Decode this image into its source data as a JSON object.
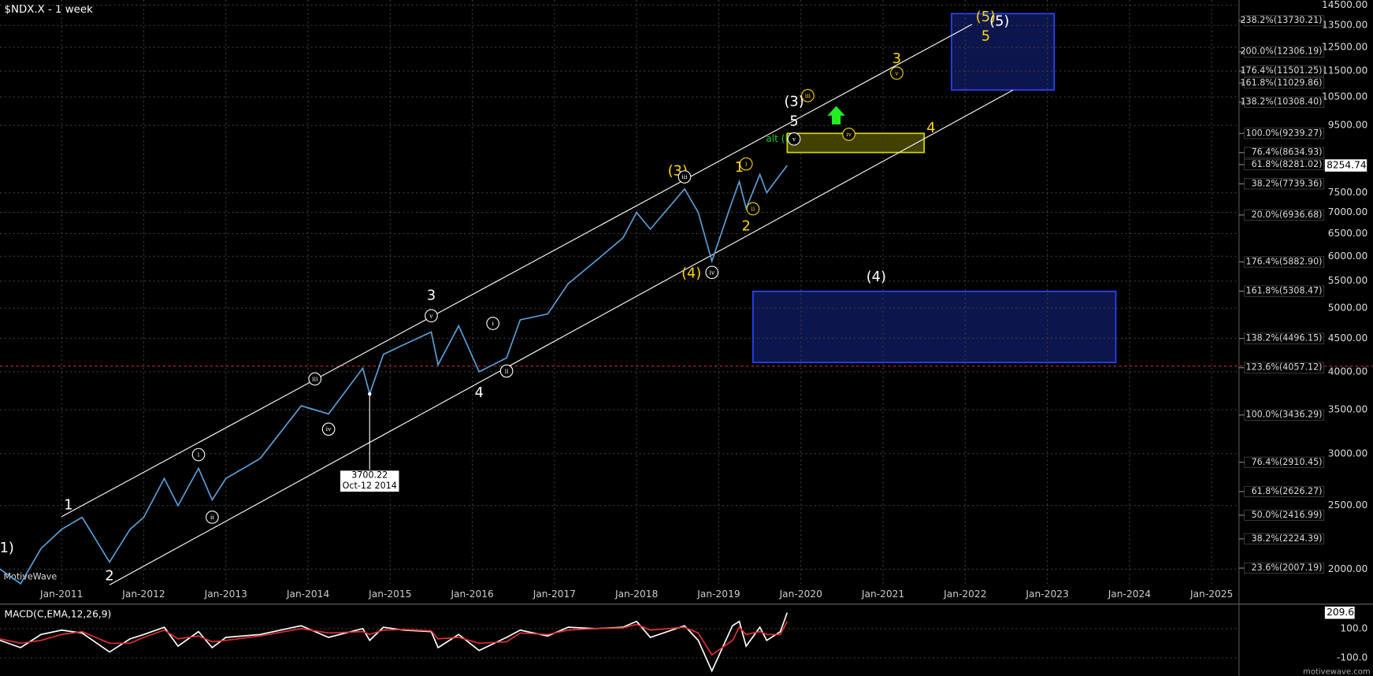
{
  "chart_data": [
    {
      "type": "line",
      "title": "$NDX.X - 1 week",
      "watermark": "MotiveWave",
      "color": "#5a9fd4",
      "log_scale": true,
      "grid": true,
      "x": [
        "2010-04",
        "2010-07",
        "2010-10",
        "2011-01",
        "2011-04",
        "2011-08",
        "2011-11",
        "2012-01",
        "2012-04",
        "2012-06",
        "2012-09",
        "2012-11",
        "2013-01",
        "2013-06",
        "2013-12",
        "2014-04",
        "2014-09",
        "2014-10",
        "2014-12",
        "2015-03",
        "2015-07",
        "2015-08",
        "2015-11",
        "2016-02",
        "2016-06",
        "2016-08",
        "2016-12",
        "2017-03",
        "2017-07",
        "2017-11",
        "2018-01",
        "2018-03",
        "2018-08",
        "2018-10",
        "2018-12",
        "2019-03",
        "2019-04",
        "2019-05",
        "2019-07",
        "2019-08",
        "2019-10",
        "2019-11"
      ],
      "values": [
        2000,
        1900,
        2150,
        2300,
        2400,
        2050,
        2300,
        2400,
        2750,
        2500,
        2850,
        2550,
        2750,
        2950,
        3550,
        3450,
        4050,
        3700,
        4250,
        4400,
        4600,
        4100,
        4700,
        4000,
        4200,
        4800,
        4900,
        5450,
        5900,
        6400,
        7000,
        6600,
        7600,
        7000,
        5900,
        7300,
        7800,
        7100,
        8000,
        7500,
        8000,
        8254.74
      ],
      "xlim": [
        "2010-04",
        "2025-05"
      ],
      "xticks": [
        {
          "value": "2011-01",
          "label": "Jan-2011"
        },
        {
          "value": "2012-01",
          "label": "Jan-2012"
        },
        {
          "value": "2013-01",
          "label": "Jan-2013"
        },
        {
          "value": "2014-01",
          "label": "Jan-2014"
        },
        {
          "value": "2015-01",
          "label": "Jan-2015"
        },
        {
          "value": "2016-01",
          "label": "Jan-2016"
        },
        {
          "value": "2017-01",
          "label": "Jan-2017"
        },
        {
          "value": "2018-01",
          "label": "Jan-2018"
        },
        {
          "value": "2019-01",
          "label": "Jan-2019"
        },
        {
          "value": "2020-01",
          "label": "Jan-2020"
        },
        {
          "value": "2021-01",
          "label": "Jan-2021"
        },
        {
          "value": "2022-01",
          "label": "Jan-2022"
        },
        {
          "value": "2023-01",
          "label": "Jan-2023"
        },
        {
          "value": "2024-01",
          "label": "Jan-2024"
        },
        {
          "value": "2025-01",
          "label": "Jan-2025"
        }
      ],
      "ylim": [
        1892,
        14760
      ],
      "yticks": [
        {
          "value": 2000,
          "label": "2000.00"
        },
        {
          "value": 2500,
          "label": "2500.00"
        },
        {
          "value": 3000,
          "label": "3000.00"
        },
        {
          "value": 3500,
          "label": "3500.00"
        },
        {
          "value": 4000,
          "label": "4000.00"
        },
        {
          "value": 4500,
          "label": "4500.00"
        },
        {
          "value": 5000,
          "label": "5000.00"
        },
        {
          "value": 5500,
          "label": "5500.00"
        },
        {
          "value": 6000,
          "label": "6000.00"
        },
        {
          "value": 6500,
          "label": "6500.00"
        },
        {
          "value": 7000,
          "label": "7000.00"
        },
        {
          "value": 7500,
          "label": "7500.00"
        },
        {
          "value": 9500,
          "label": "9500.00"
        },
        {
          "value": 10500,
          "label": "10500.00"
        },
        {
          "value": 11500,
          "label": "11500.00"
        },
        {
          "value": 12500,
          "label": "12500.00"
        },
        {
          "value": 13500,
          "label": "13500.00"
        },
        {
          "value": 14500,
          "label": "14500.00"
        }
      ],
      "fib_levels": [
        {
          "value": 13730.21,
          "label": "238.2%(13730.21)"
        },
        {
          "value": 12306.19,
          "label": "200.0%(12306.19)"
        },
        {
          "value": 11501.25,
          "label": "176.4%(11501.25)"
        },
        {
          "value": 11029.86,
          "label": "161.8%(11029.86)"
        },
        {
          "value": 10308.4,
          "label": "138.2%(10308.40)"
        },
        {
          "value": 9239.27,
          "label": "100.0%(9239.27)"
        },
        {
          "value": 8634.93,
          "label": "76.4%(8634.93)"
        },
        {
          "value": 8281.02,
          "label": "61.8%(8281.02)"
        },
        {
          "value": 7739.36,
          "label": "38.2%(7739.36)"
        },
        {
          "value": 6936.68,
          "label": "20.0%(6936.68)"
        },
        {
          "value": 5882.9,
          "label": "176.4%(5882.90)"
        },
        {
          "value": 5308.47,
          "label": "161.8%(5308.47)"
        },
        {
          "value": 4496.15,
          "label": "138.2%(4496.15)"
        },
        {
          "value": 4057.12,
          "label": "123.6%(4057.12)"
        },
        {
          "value": 3436.29,
          "label": "100.0%(3436.29)"
        },
        {
          "value": 2910.45,
          "label": "76.4%(2910.45)"
        },
        {
          "value": 2626.27,
          "label": "61.8%(2626.27)"
        },
        {
          "value": 2416.99,
          "label": "50.0%(2416.99)"
        },
        {
          "value": 2224.39,
          "label": "38.2%(2224.39)"
        },
        {
          "value": 2007.19,
          "label": "23.6%(2007.19)"
        }
      ],
      "zones": [
        {
          "x": [
            "2021-11",
            "2023-02"
          ],
          "y": [
            10760,
            14070
          ],
          "color": "#2a46ff"
        },
        {
          "x": [
            "2019-06",
            "2023-11"
          ],
          "y": [
            4133,
            5305
          ],
          "color": "#2a46ff"
        },
        {
          "x": [
            "2019-11",
            "2021-07"
          ],
          "y": [
            8640,
            9240
          ],
          "color": "#d8d800"
        }
      ],
      "channel_lines": [
        {
          "x": [
            "2011-01",
            "2022-02"
          ],
          "y": [
            2405,
            13550
          ],
          "color": "#ffffff"
        },
        {
          "x": [
            "2011-08",
            "2022-08"
          ],
          "y": [
            1892,
            10760
          ],
          "color": "#ffffff"
        }
      ],
      "reference_line": {
        "value": 4080,
        "color": "#c03030"
      },
      "callout": {
        "x": "2014-10",
        "value": 3700.22,
        "label": "3700.22",
        "date": "Oct-12 2014"
      },
      "annotations": [
        {
          "text": "1)",
          "color": "#ffffff",
          "x": "2010-05",
          "y": 2150
        },
        {
          "text": "1",
          "color": "#ffffff",
          "x": "2011-02",
          "y": 2503
        },
        {
          "text": "2",
          "color": "#ffffff",
          "x": "2011-08",
          "y": 1951
        },
        {
          "text": "3",
          "color": "#ffffff",
          "x": "2015-07",
          "y": 5220
        },
        {
          "text": "4",
          "color": "#ffffff",
          "x": "2016-02",
          "y": 3710
        },
        {
          "text": "(3)",
          "color": "#ffffff",
          "x": "2019-12",
          "y": 10310
        },
        {
          "text": "5",
          "color": "#ffffff",
          "x": "2019-12",
          "y": 9630
        },
        {
          "text": "(4)",
          "color": "#ffffff",
          "x": "2020-12",
          "y": 5570
        },
        {
          "text": "(5)",
          "color": "#ffffff",
          "x": "2022-06",
          "y": 13680
        },
        {
          "text": "(5)",
          "color": "#ffd700",
          "x": "2022-04",
          "y": 13890
        },
        {
          "text": "5",
          "color": "#ffd700",
          "x": "2022-04",
          "y": 12980
        },
        {
          "text": "3",
          "color": "#ffd700",
          "x": "2021-03",
          "y": 11990
        },
        {
          "text": "4",
          "color": "#ffd700",
          "x": "2021-08",
          "y": 9400
        },
        {
          "text": "(3)",
          "color": "#ffd700",
          "x": "2018-07",
          "y": 8080
        },
        {
          "text": "(4)",
          "color": "#ffd700",
          "x": "2018-09",
          "y": 5640
        },
        {
          "text": "1",
          "color": "#ffd700",
          "x": "2019-04",
          "y": 8190
        },
        {
          "text": "2",
          "color": "#ffd700",
          "x": "2019-05",
          "y": 6660
        },
        {
          "text": "alt (b)",
          "color": "#22cc22",
          "x": "2019-10",
          "y": 9060
        },
        {
          "text": "i",
          "color": "#ffffff",
          "x": "2012-09",
          "y": 2990,
          "circled": true
        },
        {
          "text": "ii",
          "color": "#ffffff",
          "x": "2012-11",
          "y": 2400,
          "circled": true
        },
        {
          "text": "iii",
          "color": "#ffffff",
          "x": "2014-02",
          "y": 3900,
          "circled": true
        },
        {
          "text": "iv",
          "color": "#ffffff",
          "x": "2014-04",
          "y": 3270,
          "circled": true
        },
        {
          "text": "v",
          "color": "#ffffff",
          "x": "2015-07",
          "y": 4870,
          "circled": true
        },
        {
          "text": "i",
          "color": "#ffffff",
          "x": "2016-04",
          "y": 4740,
          "circled": true
        },
        {
          "text": "ii",
          "color": "#ffffff",
          "x": "2016-06",
          "y": 4010,
          "circled": true
        },
        {
          "text": "iii",
          "color": "#ffffff",
          "x": "2018-08",
          "y": 7930,
          "circled": true
        },
        {
          "text": "iv",
          "color": "#ffffff",
          "x": "2018-12",
          "y": 5670,
          "circled": true
        },
        {
          "text": "v",
          "color": "#ffffff",
          "x": "2019-12",
          "y": 9060,
          "circled": true
        },
        {
          "text": "i",
          "color": "#ffd700",
          "x": "2019-05",
          "y": 8300,
          "circled": true
        },
        {
          "text": "ii",
          "color": "#ffd700",
          "x": "2019-06",
          "y": 7090,
          "circled": true
        },
        {
          "text": "iii",
          "color": "#ffd700",
          "x": "2020-02",
          "y": 10550,
          "circled": true
        },
        {
          "text": "iv",
          "color": "#ffd700",
          "x": "2020-08",
          "y": 9210,
          "circled": true
        },
        {
          "text": "v",
          "color": "#ffd700",
          "x": "2021-03",
          "y": 11420,
          "circled": true
        }
      ]
    },
    {
      "type": "line",
      "title": "MACD(C,EMA,12,26,9)",
      "source": "motivewave.com",
      "grid": true,
      "x": [
        "2010-04",
        "2010-07",
        "2010-10",
        "2011-01",
        "2011-04",
        "2011-08",
        "2011-11",
        "2012-01",
        "2012-04",
        "2012-06",
        "2012-09",
        "2012-11",
        "2013-01",
        "2013-06",
        "2013-12",
        "2014-04",
        "2014-09",
        "2014-10",
        "2014-12",
        "2015-03",
        "2015-07",
        "2015-08",
        "2015-11",
        "2016-02",
        "2016-06",
        "2016-08",
        "2016-12",
        "2017-03",
        "2017-07",
        "2017-11",
        "2018-01",
        "2018-03",
        "2018-08",
        "2018-10",
        "2018-12",
        "2019-03",
        "2019-04",
        "2019-05",
        "2019-07",
        "2019-08",
        "2019-10",
        "2019-11"
      ],
      "series": [
        {
          "color": "#ffffff",
          "values": [
            20,
            -30,
            60,
            90,
            70,
            -60,
            30,
            60,
            110,
            -20,
            80,
            -30,
            40,
            60,
            120,
            40,
            100,
            20,
            110,
            90,
            80,
            -30,
            60,
            -50,
            40,
            90,
            50,
            110,
            100,
            110,
            150,
            40,
            120,
            20,
            -190,
            120,
            150,
            -20,
            110,
            20,
            80,
            209.6
          ]
        },
        {
          "color": "#e03030",
          "values": [
            30,
            0,
            20,
            60,
            80,
            0,
            0,
            40,
            90,
            30,
            50,
            10,
            20,
            50,
            100,
            70,
            80,
            60,
            90,
            95,
            85,
            30,
            40,
            0,
            10,
            70,
            60,
            90,
            100,
            105,
            130,
            90,
            110,
            70,
            -80,
            20,
            110,
            60,
            80,
            60,
            60,
            150
          ]
        }
      ],
      "xlim": [
        "2010-04",
        "2025-05"
      ],
      "ylim": [
        -225,
        256
      ],
      "yticks": [
        {
          "value": 100,
          "label": "100.0"
        },
        {
          "value": -100,
          "label": "-100.0"
        }
      ]
    }
  ]
}
